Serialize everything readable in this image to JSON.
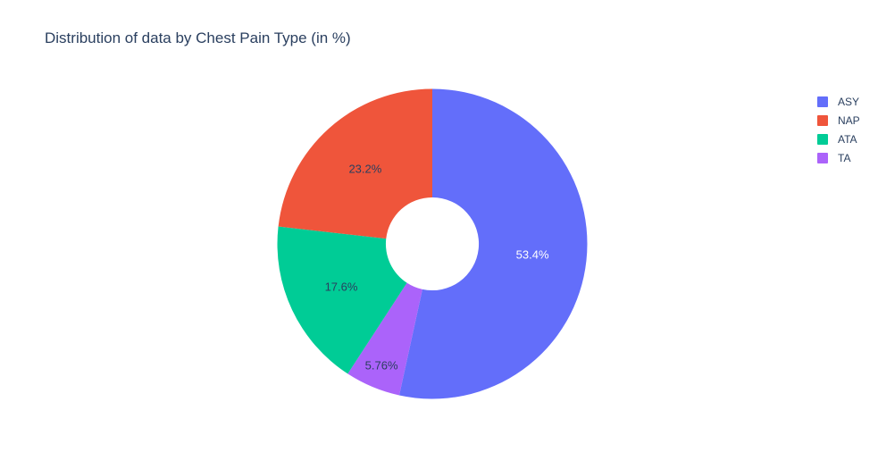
{
  "page": {
    "background_color": "#ffffff",
    "text_color": "#2a3f5f"
  },
  "chart_data": {
    "type": "pie",
    "title": "Distribution of data by Chest Pain Type (in %)",
    "labels": [
      "ASY",
      "NAP",
      "ATA",
      "TA"
    ],
    "values": [
      53.4,
      23.2,
      17.6,
      5.76
    ],
    "value_labels": [
      "53.4%",
      "23.2%",
      "17.6%",
      "5.76%"
    ],
    "colors": [
      "#636efa",
      "#ef553b",
      "#00cc96",
      "#ab63fa"
    ],
    "inside_text_colors": [
      "#ffffff",
      "#2a3f5f",
      "#2a3f5f",
      "#2a3f5f"
    ],
    "hole": 0.3,
    "layout_hints": {
      "sort": "descending",
      "start_angle": "12 o'clock",
      "largest_slice_direction": "clockwise",
      "remaining_slices_direction": "counterclockwise",
      "legend_position": "top-right",
      "labels_inside": true
    }
  }
}
